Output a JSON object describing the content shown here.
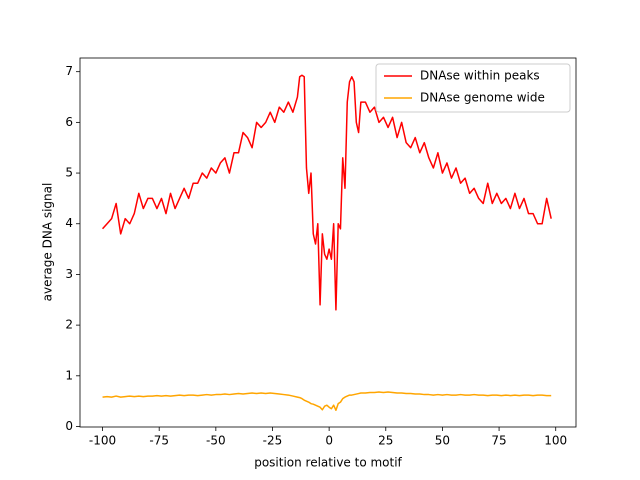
{
  "chart_data": {
    "type": "line",
    "xlabel": "position relative to motif",
    "ylabel": "average DNA signal",
    "x": [
      -100,
      -98,
      -96,
      -94,
      -92,
      -90,
      -88,
      -86,
      -84,
      -82,
      -80,
      -78,
      -76,
      -74,
      -72,
      -70,
      -68,
      -66,
      -64,
      -62,
      -60,
      -58,
      -56,
      -54,
      -52,
      -50,
      -48,
      -46,
      -44,
      -42,
      -40,
      -38,
      -36,
      -34,
      -32,
      -30,
      -28,
      -26,
      -24,
      -22,
      -20,
      -18,
      -16,
      -14,
      -13,
      -12,
      -11,
      -10,
      -9,
      -8,
      -7,
      -6,
      -5,
      -4,
      -3,
      -2,
      -1,
      0,
      1,
      2,
      3,
      4,
      5,
      6,
      7,
      8,
      9,
      10,
      11,
      12,
      13,
      14,
      16,
      18,
      20,
      22,
      24,
      26,
      28,
      30,
      32,
      34,
      36,
      38,
      40,
      42,
      44,
      46,
      48,
      50,
      52,
      54,
      56,
      58,
      60,
      62,
      64,
      66,
      68,
      70,
      72,
      74,
      76,
      78,
      80,
      82,
      84,
      86,
      88,
      90,
      92,
      94,
      96,
      98
    ],
    "series": [
      {
        "name": "DNAse within peaks",
        "color": "#ff0000",
        "values": [
          3.9,
          4.0,
          4.1,
          4.4,
          3.8,
          4.1,
          4.0,
          4.2,
          4.6,
          4.3,
          4.5,
          4.5,
          4.3,
          4.5,
          4.2,
          4.6,
          4.3,
          4.5,
          4.7,
          4.5,
          4.8,
          4.8,
          5.0,
          4.9,
          5.1,
          5.0,
          5.2,
          5.3,
          5.0,
          5.4,
          5.4,
          5.8,
          5.7,
          5.5,
          6.0,
          5.9,
          6.0,
          6.2,
          6.0,
          6.3,
          6.2,
          6.4,
          6.2,
          6.5,
          6.9,
          6.93,
          6.9,
          5.1,
          4.6,
          5.0,
          3.8,
          3.6,
          4.0,
          2.4,
          3.8,
          3.4,
          3.3,
          3.5,
          3.3,
          4.0,
          2.3,
          4.0,
          3.9,
          5.3,
          4.7,
          6.4,
          6.8,
          6.9,
          6.8,
          6.0,
          5.8,
          6.4,
          6.4,
          6.2,
          6.3,
          6.0,
          6.1,
          5.9,
          6.1,
          5.7,
          6.0,
          5.6,
          5.5,
          5.7,
          5.4,
          5.6,
          5.3,
          5.1,
          5.4,
          5.0,
          5.2,
          4.9,
          5.1,
          4.8,
          4.9,
          4.6,
          4.7,
          4.5,
          4.4,
          4.8,
          4.4,
          4.6,
          4.4,
          4.5,
          4.3,
          4.6,
          4.3,
          4.5,
          4.2,
          4.2,
          4.0,
          4.0,
          4.5,
          4.1
        ]
      },
      {
        "name": "DNAse genome wide",
        "color": "#ffa500",
        "values": [
          0.58,
          0.59,
          0.58,
          0.6,
          0.58,
          0.59,
          0.6,
          0.59,
          0.6,
          0.59,
          0.6,
          0.6,
          0.61,
          0.6,
          0.61,
          0.6,
          0.61,
          0.62,
          0.61,
          0.62,
          0.62,
          0.61,
          0.62,
          0.63,
          0.62,
          0.63,
          0.63,
          0.64,
          0.63,
          0.64,
          0.65,
          0.64,
          0.65,
          0.66,
          0.65,
          0.66,
          0.65,
          0.66,
          0.65,
          0.64,
          0.63,
          0.62,
          0.6,
          0.58,
          0.57,
          0.55,
          0.52,
          0.5,
          0.48,
          0.45,
          0.44,
          0.42,
          0.4,
          0.38,
          0.33,
          0.4,
          0.42,
          0.38,
          0.35,
          0.42,
          0.32,
          0.45,
          0.48,
          0.55,
          0.58,
          0.6,
          0.62,
          0.62,
          0.63,
          0.64,
          0.65,
          0.66,
          0.66,
          0.67,
          0.67,
          0.68,
          0.67,
          0.68,
          0.67,
          0.66,
          0.66,
          0.65,
          0.65,
          0.64,
          0.64,
          0.63,
          0.63,
          0.62,
          0.63,
          0.62,
          0.63,
          0.62,
          0.62,
          0.63,
          0.62,
          0.62,
          0.63,
          0.62,
          0.62,
          0.61,
          0.62,
          0.62,
          0.61,
          0.62,
          0.61,
          0.62,
          0.61,
          0.62,
          0.62,
          0.61,
          0.62,
          0.62,
          0.61,
          0.61
        ]
      }
    ],
    "xlim": [
      -109.95,
      108.95
    ],
    "ylim": [
      -0.01,
      7.27
    ],
    "xticks": [
      -100,
      -75,
      -50,
      -25,
      0,
      25,
      50,
      75,
      100
    ],
    "yticks": [
      0,
      1,
      2,
      3,
      4,
      5,
      6,
      7
    ],
    "legend": "upper right"
  }
}
